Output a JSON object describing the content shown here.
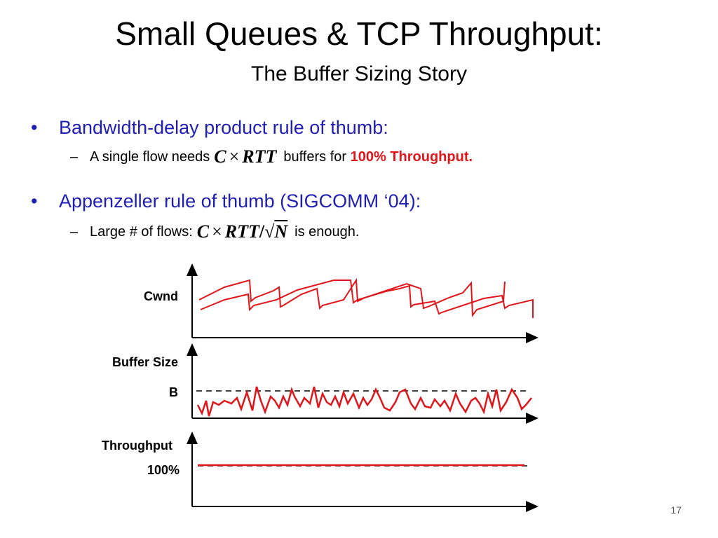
{
  "slide": {
    "title": "Small Queues & TCP Throughput:",
    "subtitle": "The Buffer Sizing Story",
    "page_number": "17"
  },
  "bullets": [
    {
      "text": "Bandwidth-delay product rule of thumb:",
      "sub": {
        "prefix": "A single flow needs",
        "math": {
          "c": "C",
          "times": "×",
          "rtt": "RTT"
        },
        "middle": "buffers for",
        "emphasis": "100% Throughput."
      }
    },
    {
      "text": "Appenzeller rule of thumb (SIGCOMM ‘04):",
      "sub": {
        "prefix": "Large # of flows:",
        "math": {
          "c": "C",
          "times": "×",
          "rtt": "RTT",
          "slash": "/",
          "sqrt": "√",
          "n": "N"
        },
        "suffix": "is enough."
      }
    }
  ],
  "figure": {
    "cwnd_label": "Cwnd",
    "buffer_label": "Buffer Size",
    "buffer_mark": "B",
    "throughput_label": "Throughput",
    "throughput_mark": "100%",
    "colors": {
      "signal": "#e0161b",
      "axis": "#000000"
    }
  }
}
